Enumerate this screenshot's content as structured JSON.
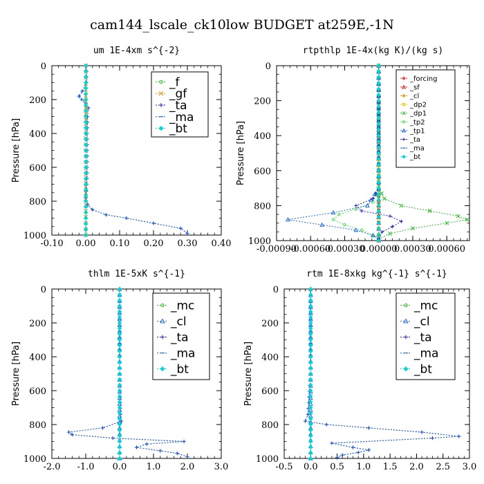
{
  "title": "cam144_lscale_ck10low  BUDGET at259E,-1N",
  "chart_data": [
    {
      "type": "line",
      "title": "um  1E-4xm s^{-2}",
      "ylabel": "Pressure [hPa]",
      "xlim": [
        -0.1,
        0.4
      ],
      "ylim": [
        1000,
        0
      ],
      "xticks": [
        "-0.10",
        "0.00",
        "0.10",
        "0.20",
        "0.30",
        "0.40"
      ],
      "xtick_values": [
        -0.1,
        0.0,
        0.1,
        0.2,
        0.3,
        0.4
      ],
      "yticks": [
        "0",
        "200",
        "400",
        "600",
        "800",
        "1000"
      ],
      "ytick_values": [
        0,
        200,
        400,
        600,
        800,
        1000
      ],
      "legend_style": "large",
      "series": [
        {
          "name": "_f",
          "color": "#22c322",
          "marker": "circle",
          "y": [
            0,
            100,
            200,
            300,
            400,
            500,
            600,
            700,
            800,
            900,
            1000
          ],
          "x": [
            0.001,
            0.001,
            0.001,
            0.001,
            0.001,
            0.001,
            0.001,
            0.001,
            0.001,
            0.001,
            0.001
          ]
        },
        {
          "name": "_gf",
          "color": "#e08a00",
          "marker": "x",
          "y": [
            0,
            500,
            1000
          ],
          "x": [
            0.0,
            0.0,
            0.0
          ]
        },
        {
          "name": "_ta",
          "color": "#1a1acc",
          "marker": "plus",
          "y": [
            0,
            100,
            150,
            180,
            200,
            220,
            250,
            300,
            400,
            500,
            600,
            700,
            780,
            820,
            850,
            880,
            900,
            930,
            960,
            990
          ],
          "x": [
            0.002,
            0.002,
            -0.01,
            -0.02,
            -0.012,
            0.0,
            0.008,
            0.005,
            0.004,
            0.004,
            0.004,
            0.003,
            0.0,
            0.006,
            0.02,
            0.06,
            0.12,
            0.2,
            0.28,
            0.3
          ]
        },
        {
          "name": "_ma",
          "color": "#1a6ad6",
          "marker": "dash",
          "y": [
            0,
            100,
            150,
            180,
            200,
            220,
            250,
            300,
            400,
            500,
            600,
            700,
            780,
            820,
            850,
            880,
            900,
            930,
            960,
            990
          ],
          "x": [
            0.002,
            0.002,
            -0.01,
            -0.02,
            -0.012,
            0.0,
            0.008,
            0.005,
            0.004,
            0.004,
            0.004,
            0.003,
            0.0,
            0.006,
            0.02,
            0.06,
            0.12,
            0.2,
            0.28,
            0.3
          ]
        },
        {
          "name": "_bt",
          "color": "#00d8d8",
          "marker": "diamond",
          "y": [
            0,
            100,
            200,
            300,
            400,
            500,
            600,
            700,
            800,
            900,
            1000
          ],
          "x": [
            0.0,
            0.0,
            0.0,
            0.0,
            0.0,
            0.0,
            0.0,
            0.0,
            0.0,
            0.0,
            0.0
          ]
        }
      ]
    },
    {
      "type": "line",
      "title": "rtpthlp  1E-4x(kg K)/(kg s)",
      "ylabel": "Pressure [hPa]",
      "xlim": [
        -0.0009,
        0.0008
      ],
      "ylim": [
        1000,
        0
      ],
      "xticks": [
        "-0.00090",
        "-0.00060",
        "-0.00030",
        "0.00000",
        "0.00030",
        "0.00060"
      ],
      "xtick_values": [
        -0.0009,
        -0.0006,
        -0.0003,
        0.0,
        0.0003,
        0.0006
      ],
      "yticks": [
        "0",
        "200",
        "400",
        "600",
        "800",
        "1000"
      ],
      "ytick_values": [
        0,
        200,
        400,
        600,
        800,
        1000
      ],
      "legend_style": "small",
      "series": [
        {
          "name": "_forcing",
          "color": "#e02020",
          "marker": "circle",
          "y": [
            0,
            100,
            200,
            300,
            400,
            500,
            600,
            700,
            800,
            900,
            1000
          ],
          "x": [
            0.0,
            0.0,
            0.0,
            0.0,
            0.0,
            0.0,
            0.0,
            0.0,
            0.0,
            0.0,
            0.0
          ]
        },
        {
          "name": "_sf",
          "color": "#e02020",
          "marker": "tri",
          "y": [
            0,
            100,
            200,
            300,
            400,
            500,
            600,
            700,
            800,
            900,
            1000
          ],
          "x": [
            0.0,
            0.0,
            0.0,
            0.0,
            0.0,
            0.0,
            0.0,
            0.0,
            0.0,
            0.0,
            0.0
          ]
        },
        {
          "name": "_cl",
          "color": "#e0a000",
          "marker": "star",
          "y": [
            0,
            500,
            1000
          ],
          "x": [
            0.0,
            0.0,
            0.0
          ]
        },
        {
          "name": "_dp2",
          "color": "#e0d000",
          "marker": "square",
          "y": [
            0,
            500,
            1000
          ],
          "x": [
            0.0,
            0.0,
            0.0
          ]
        },
        {
          "name": "_dp1",
          "color": "#22b822",
          "marker": "x",
          "y": [
            0,
            700,
            760,
            800,
            830,
            860,
            880,
            900,
            930,
            960,
            990
          ],
          "x": [
            0.0,
            0.0,
            5e-05,
            0.0002,
            0.00045,
            0.0007,
            0.00078,
            0.0006,
            0.0003,
            0.0001,
            0.0
          ]
        },
        {
          "name": "_tp2",
          "color": "#55dd55",
          "marker": "circle",
          "y": [
            0,
            700,
            780,
            820,
            850,
            880,
            910,
            940,
            970,
            990
          ],
          "x": [
            0.0,
            0.0,
            -5e-05,
            -0.0002,
            -0.00035,
            -0.0004,
            -0.0003,
            -0.00015,
            -5e-05,
            0.0
          ]
        },
        {
          "name": "_tp1",
          "color": "#1a6ad6",
          "marker": "tri",
          "y": [
            0,
            700,
            800,
            840,
            880,
            910,
            940,
            970,
            990
          ],
          "x": [
            0.0,
            0.0,
            -0.0001,
            -0.0004,
            -0.0008,
            -0.0005,
            -0.0002,
            -5e-05,
            0.0
          ]
        },
        {
          "name": "_ta",
          "color": "#1a1acc",
          "marker": "plus",
          "y": [
            0,
            700,
            760,
            800,
            830,
            860,
            890,
            920,
            950,
            990
          ],
          "x": [
            0.0,
            0.0,
            -5e-05,
            -0.0002,
            -0.00015,
            0.0001,
            0.0002,
            0.00012,
            3e-05,
            0.0
          ]
        },
        {
          "name": "_ma",
          "color": "#1a6ad6",
          "marker": "dash",
          "y": [
            0,
            500,
            1000
          ],
          "x": [
            0.0,
            0.0,
            0.0
          ]
        },
        {
          "name": "_bt",
          "color": "#00d8d8",
          "marker": "diamond",
          "y": [
            0,
            100,
            200,
            300,
            400,
            500,
            600,
            700,
            800,
            900,
            1000
          ],
          "x": [
            0.0,
            0.0,
            0.0,
            0.0,
            0.0,
            0.0,
            0.0,
            0.0,
            0.0,
            0.0,
            0.0
          ]
        }
      ]
    },
    {
      "type": "line",
      "title": "thlm  1E-5xK s^{-1}",
      "ylabel": "Pressure [hPa]",
      "xlim": [
        -2.0,
        3.0
      ],
      "ylim": [
        1000,
        0
      ],
      "xticks": [
        "-2.0",
        "-1.0",
        "0.0",
        "1.0",
        "2.0",
        "3.0"
      ],
      "xtick_values": [
        -2.0,
        -1.0,
        0.0,
        1.0,
        2.0,
        3.0
      ],
      "yticks": [
        "0",
        "200",
        "400",
        "600",
        "800",
        "1000"
      ],
      "ytick_values": [
        0,
        200,
        400,
        600,
        800,
        1000
      ],
      "legend_style": "large",
      "series": [
        {
          "name": "_mc",
          "color": "#22c322",
          "marker": "circle",
          "y": [
            0,
            100,
            200,
            300,
            400,
            500,
            600,
            700,
            800,
            900,
            1000
          ],
          "x": [
            0.0,
            0.0,
            0.0,
            0.0,
            0.0,
            0.0,
            0.0,
            0.0,
            0.0,
            0.0,
            0.0
          ]
        },
        {
          "name": "_cl",
          "color": "#1a6ad6",
          "marker": "tri",
          "y": [
            0,
            500,
            1000
          ],
          "x": [
            0.0,
            0.0,
            0.0
          ]
        },
        {
          "name": "_ta",
          "color": "#1a1acc",
          "marker": "plus",
          "y": [
            0,
            500,
            740,
            780,
            820,
            845,
            860,
            880,
            900,
            915,
            935,
            955,
            970,
            990
          ],
          "x": [
            0.0,
            0.0,
            0.02,
            0.05,
            -0.5,
            -1.5,
            -1.4,
            -0.2,
            1.9,
            0.8,
            0.5,
            1.2,
            1.7,
            2.0
          ]
        },
        {
          "name": "_ma",
          "color": "#1a6ad6",
          "marker": "dash",
          "y": [
            0,
            500,
            740,
            780,
            820,
            845,
            860,
            880,
            900,
            915,
            935,
            955,
            970,
            990
          ],
          "x": [
            0.0,
            0.0,
            0.02,
            0.05,
            -0.5,
            -1.5,
            -1.4,
            -0.2,
            1.9,
            0.8,
            0.5,
            1.2,
            1.7,
            2.0
          ]
        },
        {
          "name": "_bt",
          "color": "#00d8d8",
          "marker": "diamond",
          "y": [
            0,
            100,
            200,
            300,
            400,
            500,
            600,
            700,
            800,
            900,
            1000
          ],
          "x": [
            0.0,
            0.0,
            0.0,
            0.0,
            0.0,
            0.0,
            0.0,
            0.0,
            0.0,
            0.0,
            0.0
          ]
        }
      ]
    },
    {
      "type": "line",
      "title": "rtm  1E-8xkg kg^{-1} s^{-1}",
      "ylabel": "Pressure [hPa]",
      "xlim": [
        -0.5,
        3.0
      ],
      "ylim": [
        1000,
        0
      ],
      "xticks": [
        "-0.5",
        "0.0",
        "0.5",
        "1.0",
        "1.5",
        "2.0",
        "2.5",
        "3.0"
      ],
      "xtick_values": [
        -0.5,
        0.0,
        0.5,
        1.0,
        1.5,
        2.0,
        2.5,
        3.0
      ],
      "yticks": [
        "0",
        "200",
        "400",
        "600",
        "800",
        "1000"
      ],
      "ytick_values": [
        0,
        200,
        400,
        600,
        800,
        1000
      ],
      "legend_style": "large",
      "series": [
        {
          "name": "_mc",
          "color": "#22c322",
          "marker": "circle",
          "y": [
            0,
            100,
            200,
            300,
            400,
            500,
            600,
            700,
            800,
            900,
            1000
          ],
          "x": [
            0.0,
            0.0,
            0.0,
            0.0,
            0.0,
            0.0,
            0.0,
            0.0,
            0.0,
            0.0,
            0.0
          ]
        },
        {
          "name": "_cl",
          "color": "#1a6ad6",
          "marker": "tri",
          "y": [
            0,
            500,
            1000
          ],
          "x": [
            0.0,
            0.0,
            0.0
          ]
        },
        {
          "name": "_ta",
          "color": "#1a1acc",
          "marker": "plus",
          "y": [
            0,
            500,
            740,
            780,
            800,
            820,
            845,
            870,
            880,
            910,
            935,
            950,
            965,
            980,
            995
          ],
          "x": [
            0.0,
            0.0,
            -0.05,
            -0.1,
            0.3,
            1.1,
            2.1,
            2.8,
            2.3,
            0.4,
            0.8,
            1.1,
            0.9,
            0.6,
            0.5
          ]
        },
        {
          "name": "_ma",
          "color": "#1a6ad6",
          "marker": "dash",
          "y": [
            0,
            500,
            740,
            780,
            800,
            820,
            845,
            870,
            880,
            910,
            935,
            950,
            965,
            980,
            995
          ],
          "x": [
            0.0,
            0.0,
            -0.05,
            -0.1,
            0.3,
            1.1,
            2.1,
            2.8,
            2.3,
            0.4,
            0.8,
            1.1,
            0.9,
            0.6,
            0.5
          ]
        },
        {
          "name": "_bt",
          "color": "#00d8d8",
          "marker": "diamond",
          "y": [
            0,
            100,
            200,
            300,
            400,
            500,
            600,
            700,
            800,
            900,
            1000
          ],
          "x": [
            0.0,
            0.0,
            0.0,
            0.0,
            0.0,
            0.0,
            0.0,
            0.0,
            0.0,
            0.0,
            0.0
          ]
        }
      ]
    }
  ]
}
